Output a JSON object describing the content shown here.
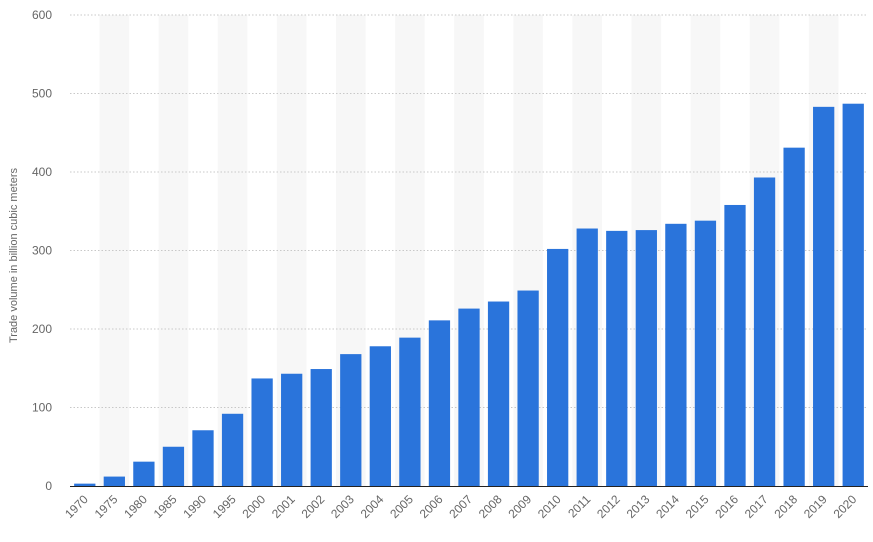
{
  "chart_data": {
    "type": "bar",
    "ylabel": "Trade volume in billion cubic meters",
    "xlabel": "",
    "ylim": [
      0,
      600
    ],
    "yticks": [
      0,
      100,
      200,
      300,
      400,
      500,
      600
    ],
    "grid": true,
    "categories": [
      "1970",
      "1975",
      "1980",
      "1985",
      "1990",
      "1995",
      "2000",
      "2001",
      "2002",
      "2003",
      "2004",
      "2005",
      "2006",
      "2007",
      "2008",
      "2009",
      "2010",
      "2011",
      "2012",
      "2013",
      "2014",
      "2015",
      "2016",
      "2017",
      "2018",
      "2019",
      "2020"
    ],
    "values": [
      3,
      12,
      31,
      50,
      71,
      92,
      137,
      143,
      149,
      168,
      178,
      189,
      211,
      226,
      235,
      249,
      302,
      328,
      325,
      326,
      334,
      338,
      358,
      393,
      431,
      483,
      487
    ],
    "bar_color": "#2a74db",
    "band_color": "#f7f7f7"
  }
}
